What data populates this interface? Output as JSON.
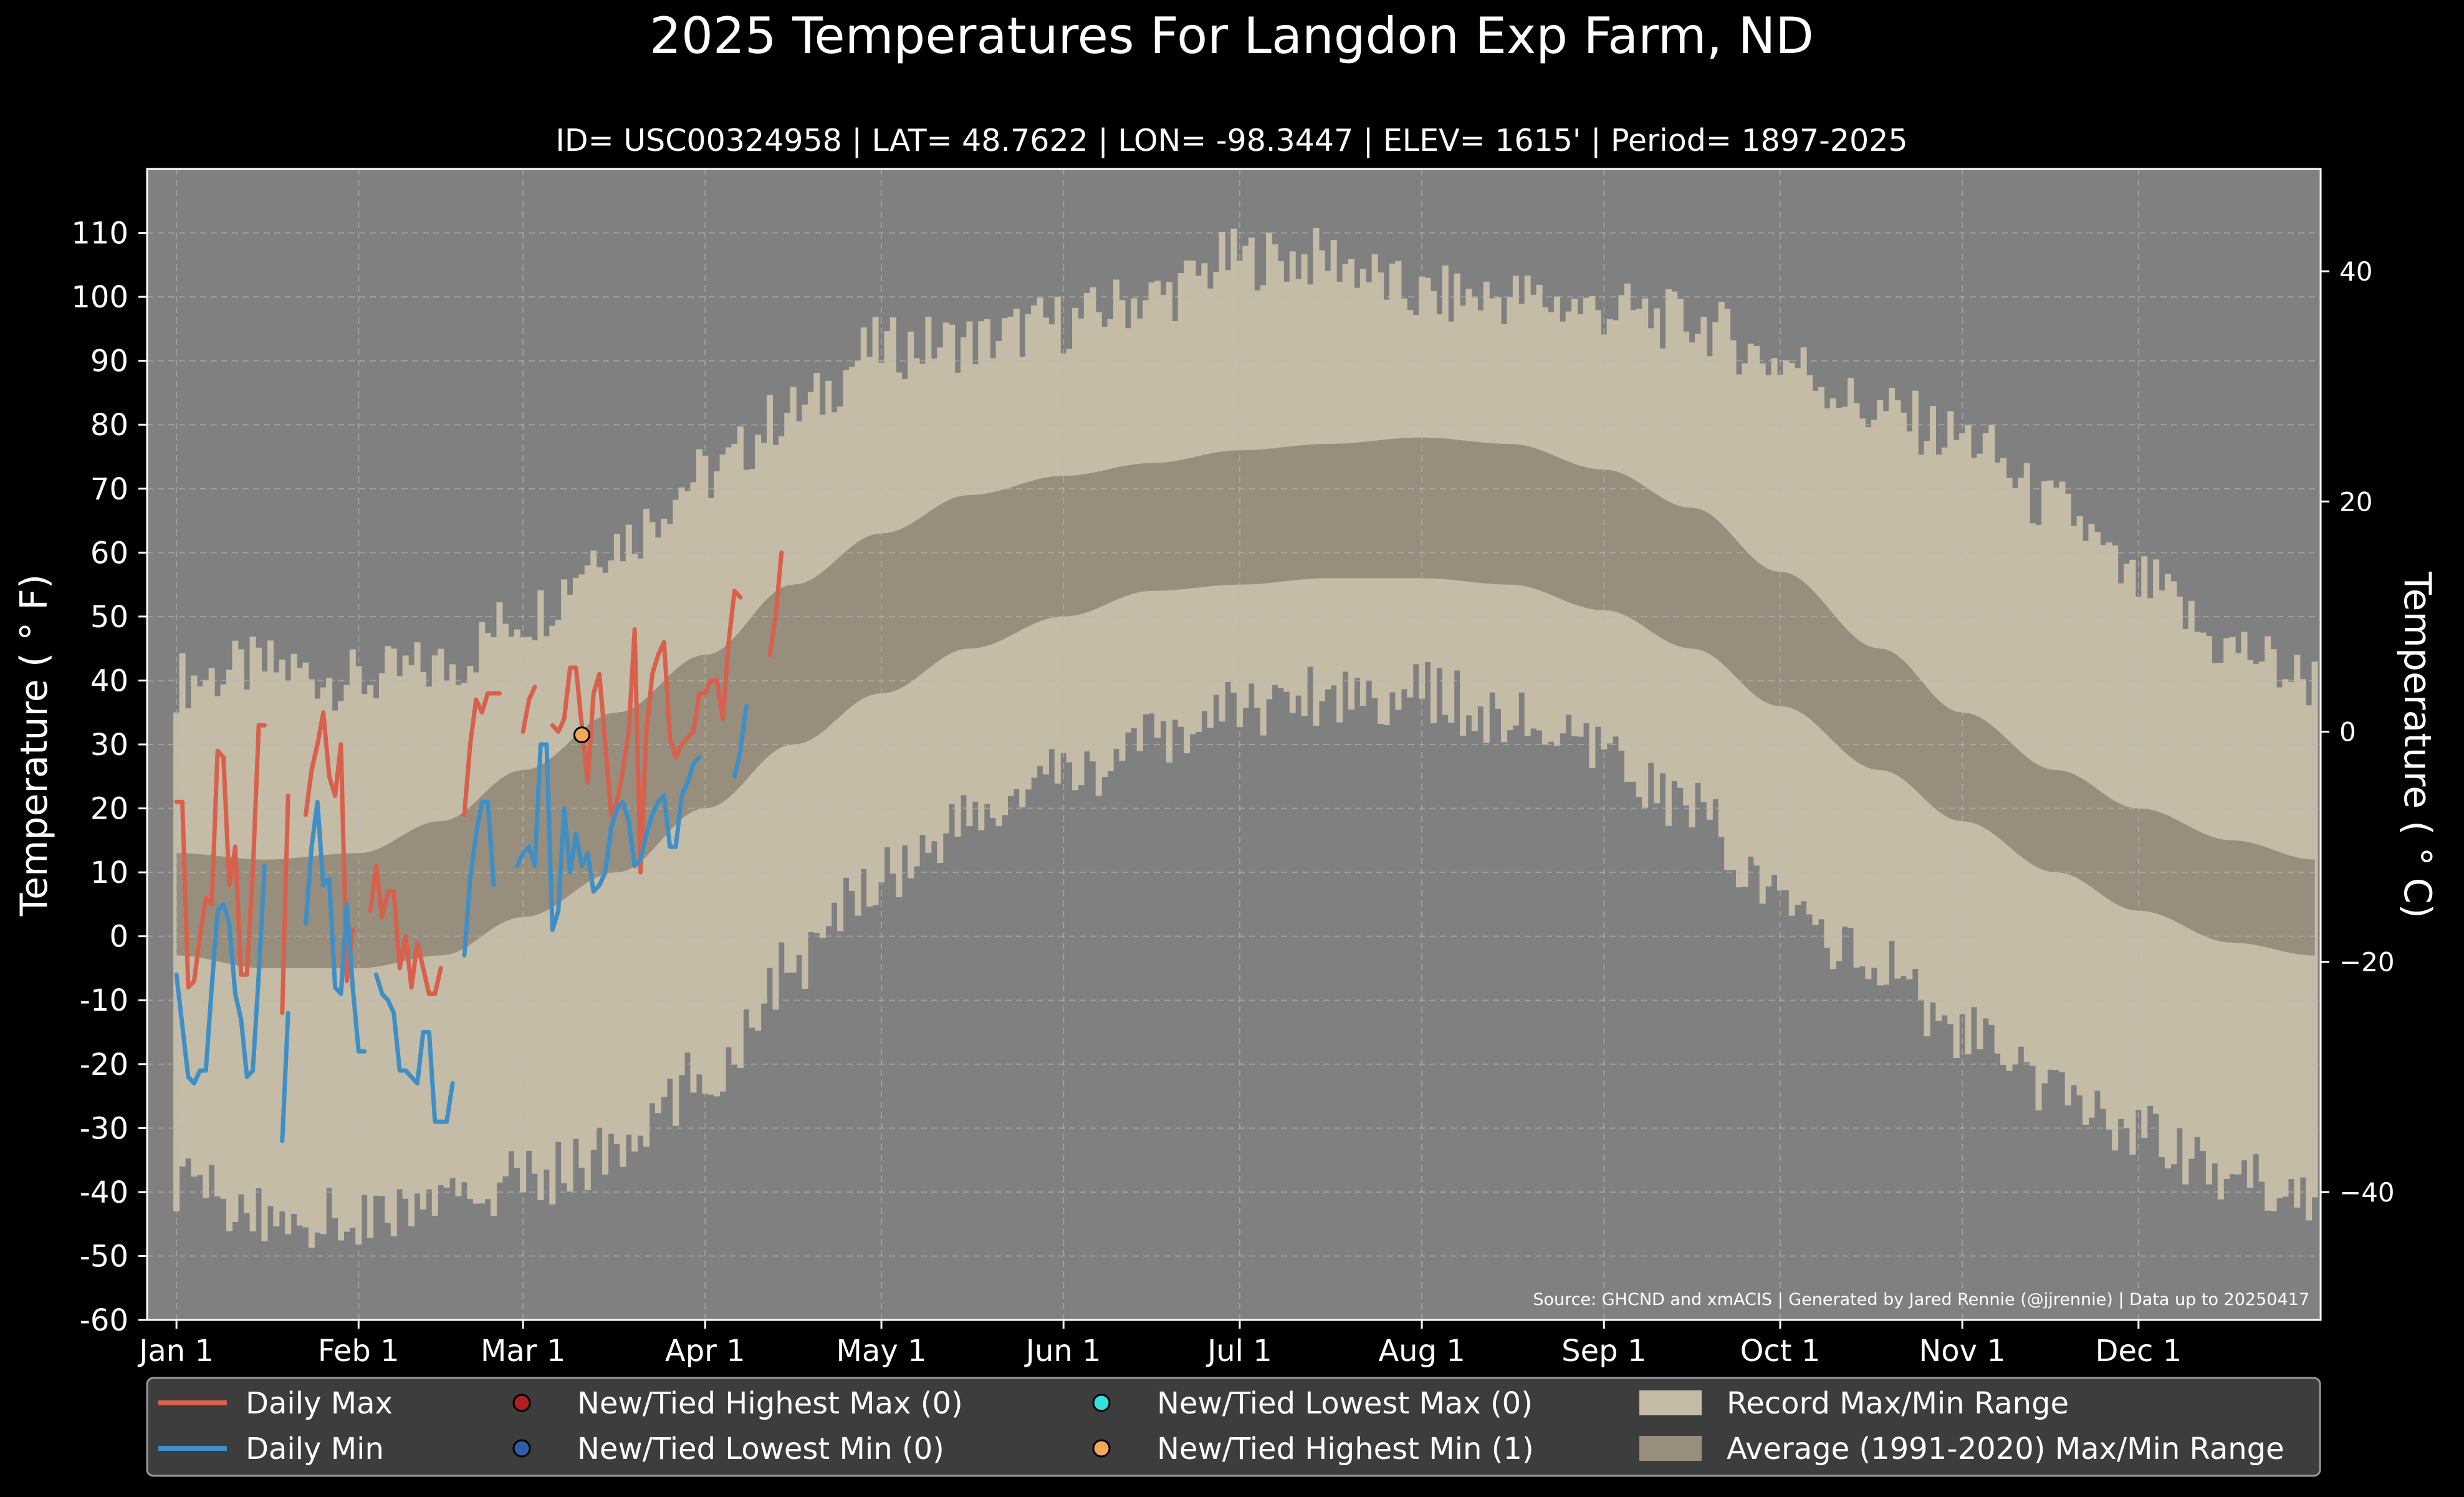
{
  "chart_data": {
    "type": "line",
    "title": "2025 Temperatures For Langdon Exp Farm, ND",
    "subtitle": "ID= USC00324958 | LAT= 48.7622 | LON= -98.3447 | ELEV= 1615' | Period= 1897-2025",
    "ylabel": "Temperature ( ° F)",
    "ylabel_right": "Temperature ( ° C)",
    "source": "Source: GHCND and xmACIS | Generated by Jared Rennie (@jjrennie) | Data up to 20250417",
    "ylim": [
      -60,
      120
    ],
    "xlim": [
      -5,
      365
    ],
    "grid": true,
    "legend_position": "bottom",
    "y_ticks": [
      "-60",
      "-50",
      "-40",
      "-30",
      "-20",
      "-10",
      "0",
      "10",
      "20",
      "30",
      "40",
      "50",
      "60",
      "70",
      "80",
      "90",
      "100",
      "110"
    ],
    "y_tick_values": [
      -60,
      -50,
      -40,
      -30,
      -20,
      -10,
      0,
      10,
      20,
      30,
      40,
      50,
      60,
      70,
      80,
      90,
      100,
      110
    ],
    "y2_ticks": [
      "−40",
      "−20",
      "0",
      "20",
      "40"
    ],
    "y2_tick_values_c": [
      -40,
      -20,
      0,
      20,
      40
    ],
    "x_ticks": [
      "Jan 1",
      "Feb 1",
      "Mar 1",
      "Apr 1",
      "May 1",
      "Jun 1",
      "Jul 1",
      "Aug 1",
      "Sep 1",
      "Oct 1",
      "Nov 1",
      "Dec 1"
    ],
    "x_tick_days": [
      0,
      31,
      59,
      90,
      120,
      151,
      181,
      212,
      243,
      273,
      304,
      334
    ],
    "colors": {
      "background": "#000000",
      "plot_bg": "#808080",
      "record_band": "#c4bca6",
      "normal_band": "#978e7d",
      "daily_max": "#d9604c",
      "daily_min": "#3f8fc6",
      "highest_max_marker": "#b01e22",
      "lowest_min_marker": "#2e5fa6",
      "lowest_max_marker": "#33e0e0",
      "highest_min_marker": "#f2a85a",
      "grid": "#b8b8b8",
      "text": "#ffffff"
    },
    "record_max_anchors": {
      "days": [
        0,
        15,
        31,
        45,
        59,
        75,
        90,
        105,
        120,
        135,
        151,
        166,
        181,
        196,
        212,
        227,
        243,
        258,
        273,
        290,
        304,
        320,
        334,
        350,
        364
      ],
      "values": [
        40,
        42,
        40,
        42,
        50,
        62,
        72,
        82,
        92,
        93,
        96,
        100,
        106,
        106,
        100,
        100,
        98,
        96,
        90,
        82,
        78,
        67,
        55,
        45,
        40
      ]
    },
    "record_min_anchors": {
      "days": [
        0,
        15,
        31,
        45,
        59,
        75,
        90,
        105,
        120,
        135,
        151,
        166,
        181,
        196,
        212,
        227,
        243,
        258,
        273,
        290,
        304,
        320,
        334,
        350,
        364
      ],
      "values": [
        -38,
        -44,
        -44,
        -42,
        -38,
        -34,
        -22,
        -5,
        10,
        18,
        25,
        30,
        36,
        38,
        38,
        34,
        28,
        20,
        5,
        -5,
        -15,
        -25,
        -30,
        -38,
        -40
      ]
    },
    "normal_max_anchors": {
      "days": [
        0,
        15,
        31,
        45,
        59,
        75,
        90,
        105,
        120,
        135,
        151,
        166,
        181,
        196,
        212,
        227,
        243,
        258,
        273,
        290,
        304,
        320,
        334,
        350,
        364
      ],
      "values": [
        13,
        12,
        13,
        18,
        26,
        35,
        44,
        55,
        63,
        69,
        72,
        74,
        76,
        77,
        78,
        77,
        73,
        67,
        57,
        45,
        35,
        26,
        20,
        15,
        12
      ]
    },
    "normal_min_anchors": {
      "days": [
        0,
        15,
        31,
        45,
        59,
        75,
        90,
        105,
        120,
        135,
        151,
        166,
        181,
        196,
        212,
        227,
        243,
        258,
        273,
        290,
        304,
        320,
        334,
        350,
        364
      ],
      "values": [
        -3,
        -5,
        -5,
        -3,
        3,
        10,
        20,
        30,
        38,
        45,
        50,
        54,
        55,
        56,
        56,
        55,
        51,
        45,
        36,
        26,
        18,
        10,
        4,
        -1,
        -3
      ]
    },
    "series": [
      {
        "name": "Daily Max",
        "values": [
          21,
          21,
          -8,
          -7,
          0,
          6,
          5,
          29,
          28,
          8,
          14,
          -6,
          -6,
          10,
          33,
          33,
          null,
          null,
          -12,
          22,
          null,
          null,
          19,
          26,
          30,
          35,
          25,
          22,
          30,
          -7,
          1,
          null,
          null,
          4,
          11,
          3,
          7,
          7,
          -5,
          0,
          -8,
          -1,
          -5,
          -9,
          -9,
          -5,
          null,
          null,
          null,
          19,
          30,
          37,
          35,
          38,
          38,
          38,
          null,
          null,
          null,
          32,
          37,
          39,
          null,
          null,
          33,
          32,
          34,
          42,
          42,
          33,
          24,
          38,
          41,
          30,
          19,
          21,
          26,
          32,
          48,
          10,
          32,
          41,
          44,
          46,
          31,
          28,
          30,
          31,
          32,
          38,
          38,
          40,
          40,
          34,
          46,
          54,
          53,
          null,
          null,
          null,
          null,
          44,
          50,
          60
        ]
      },
      {
        "name": "Daily Min",
        "values": [
          -6,
          -14,
          -22,
          -23,
          -21,
          -21,
          -8,
          4,
          5,
          2,
          -9,
          -13,
          -22,
          -21,
          -6,
          11,
          null,
          null,
          -32,
          -12,
          null,
          null,
          2,
          14,
          21,
          8,
          9,
          -8,
          -9,
          5,
          -8,
          -18,
          -18,
          null,
          -6,
          -9,
          -10,
          -12,
          -21,
          -21,
          -22,
          -23,
          -15,
          -15,
          -29,
          -29,
          -29,
          -23,
          null,
          -3,
          9,
          16,
          21,
          21,
          8,
          null,
          null,
          null,
          11,
          13,
          14,
          11,
          30,
          30,
          1,
          4,
          20,
          10,
          16,
          11,
          13,
          7,
          8,
          10,
          17,
          20,
          21,
          18,
          11,
          12,
          16,
          19,
          21,
          22,
          14,
          14,
          22,
          24,
          27,
          28,
          null,
          null,
          null,
          null,
          null,
          25,
          29,
          36
        ]
      }
    ],
    "highest_min_points": [
      {
        "x": 69,
        "y": 31.5
      }
    ],
    "legend": [
      {
        "key": "daily_max",
        "label": "Daily Max",
        "kind": "line"
      },
      {
        "key": "daily_min",
        "label": "Daily Min",
        "kind": "line"
      },
      {
        "key": "highest_max_marker",
        "label": "New/Tied Highest Max (0)",
        "kind": "marker"
      },
      {
        "key": "lowest_min_marker",
        "label": "New/Tied Lowest Min (0)",
        "kind": "marker"
      },
      {
        "key": "lowest_max_marker",
        "label": "New/Tied Lowest Max (0)",
        "kind": "marker"
      },
      {
        "key": "highest_min_marker",
        "label": "New/Tied Highest Min (1)",
        "kind": "marker"
      },
      {
        "key": "record_band",
        "label": "Record Max/Min Range",
        "kind": "patch"
      },
      {
        "key": "normal_band",
        "label": "Average (1991-2020) Max/Min Range",
        "kind": "patch"
      }
    ]
  }
}
